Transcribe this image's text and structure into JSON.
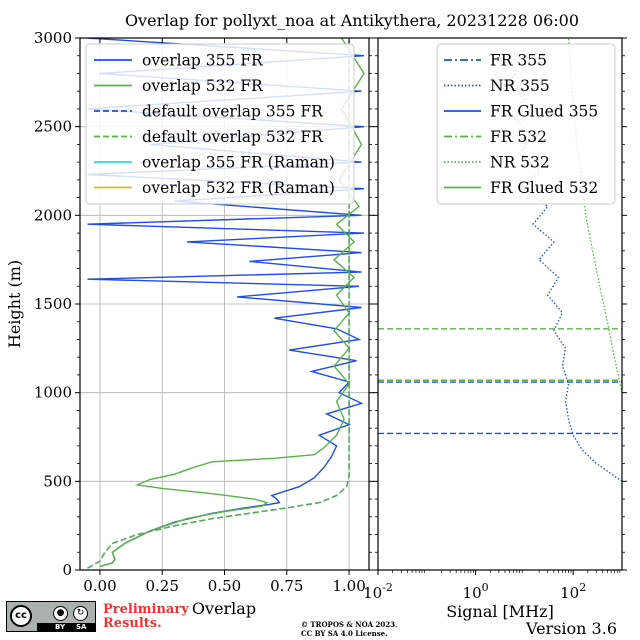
{
  "title": "Overlap for pollyxt_noa at Antikythera, 20231228 06:00",
  "footer": {
    "cc_icon": "creative-commons-by-sa-icon",
    "cc_by": "BY",
    "cc_sa": "SA",
    "preliminary_line1": "Preliminary",
    "preliminary_line2": "Results.",
    "copyright_line1": "© TROPOS & NOA 2023.",
    "copyright_line2": "CC BY SA 4.0 License.",
    "version": "Version 3.6"
  },
  "colors": {
    "blue": "#1f4fdc",
    "green": "#59b347",
    "cyan": "#22dfe6",
    "gold": "#e2b823"
  },
  "chart_data": [
    {
      "type": "line",
      "xlabel": "Overlap",
      "ylabel": "Height (m)",
      "xlim": [
        -0.08,
        1.08
      ],
      "ylim": [
        0,
        3000
      ],
      "xticks": [
        0.0,
        0.25,
        0.5,
        0.75,
        1.0
      ],
      "xtick_labels": [
        "0.00",
        "0.25",
        "0.50",
        "0.75",
        "1.00"
      ],
      "yticks": [
        0,
        500,
        1000,
        1500,
        2000,
        2500,
        3000
      ],
      "ytick_labels": [
        "0",
        "500",
        "1000",
        "1500",
        "2000",
        "2500",
        "3000"
      ],
      "grid": true,
      "legend_position": "top-left",
      "series": [
        {
          "name": "overlap 355 FR",
          "style": "solid",
          "color": "#1f4fdc",
          "points": [
            [
              0.0,
              20
            ],
            [
              0.05,
              40
            ],
            [
              0.06,
              60
            ],
            [
              0.05,
              100
            ],
            [
              0.1,
              150
            ],
            [
              0.2,
              220
            ],
            [
              0.3,
              270
            ],
            [
              0.45,
              320
            ],
            [
              0.58,
              350
            ],
            [
              0.68,
              370
            ],
            [
              0.72,
              380
            ],
            [
              0.71,
              400
            ],
            [
              0.69,
              420
            ],
            [
              0.8,
              470
            ],
            [
              0.86,
              520
            ],
            [
              0.9,
              580
            ],
            [
              0.93,
              640
            ],
            [
              0.95,
              700
            ],
            [
              0.88,
              760
            ],
            [
              1.0,
              820
            ],
            [
              0.91,
              880
            ],
            [
              1.05,
              940
            ],
            [
              0.96,
              1000
            ],
            [
              1.0,
              1060
            ],
            [
              0.85,
              1120
            ],
            [
              1.03,
              1180
            ],
            [
              0.76,
              1240
            ],
            [
              1.04,
              1300
            ],
            [
              0.95,
              1360
            ],
            [
              0.7,
              1420
            ],
            [
              1.05,
              1480
            ],
            [
              0.55,
              1540
            ],
            [
              1.04,
              1600
            ],
            [
              -0.05,
              1640
            ],
            [
              1.05,
              1680
            ],
            [
              0.6,
              1740
            ],
            [
              1.05,
              1790
            ],
            [
              0.35,
              1850
            ],
            [
              1.06,
              1900
            ],
            [
              -0.05,
              1950
            ],
            [
              1.05,
              2000
            ],
            [
              0.3,
              2080
            ],
            [
              1.06,
              2150
            ],
            [
              -0.05,
              2230
            ],
            [
              1.05,
              2300
            ],
            [
              0.2,
              2400
            ],
            [
              1.06,
              2500
            ],
            [
              -0.05,
              2600
            ],
            [
              1.05,
              2700
            ],
            [
              0.0,
              2800
            ],
            [
              1.06,
              2900
            ],
            [
              -0.05,
              3000
            ]
          ]
        },
        {
          "name": "overlap 532 FR",
          "style": "solid",
          "color": "#59b347",
          "points": [
            [
              0.0,
              20
            ],
            [
              0.05,
              40
            ],
            [
              0.06,
              60
            ],
            [
              0.05,
              100
            ],
            [
              0.1,
              150
            ],
            [
              0.2,
              220
            ],
            [
              0.35,
              290
            ],
            [
              0.5,
              330
            ],
            [
              0.65,
              360
            ],
            [
              0.67,
              380
            ],
            [
              0.62,
              400
            ],
            [
              0.45,
              430
            ],
            [
              0.25,
              460
            ],
            [
              0.15,
              480
            ],
            [
              0.2,
              510
            ],
            [
              0.3,
              540
            ],
            [
              0.38,
              580
            ],
            [
              0.45,
              610
            ],
            [
              0.7,
              630
            ],
            [
              0.86,
              650
            ],
            [
              0.9,
              690
            ],
            [
              0.95,
              760
            ],
            [
              0.98,
              850
            ],
            [
              0.95,
              950
            ],
            [
              1.0,
              1050
            ],
            [
              0.94,
              1150
            ],
            [
              1.0,
              1250
            ],
            [
              0.94,
              1350
            ],
            [
              1.0,
              1450
            ],
            [
              0.95,
              1550
            ],
            [
              1.02,
              1650
            ],
            [
              0.94,
              1750
            ],
            [
              1.02,
              1850
            ],
            [
              0.95,
              1950
            ],
            [
              1.04,
              2050
            ],
            [
              0.96,
              2200
            ],
            [
              1.05,
              2400
            ],
            [
              0.97,
              2600
            ],
            [
              1.06,
              2800
            ],
            [
              0.97,
              3000
            ]
          ]
        },
        {
          "name": "default overlap 355 FR",
          "style": "dashed",
          "color": "#1f4fdc",
          "points": [
            [
              -0.05,
              10
            ],
            [
              0.0,
              50
            ],
            [
              0.02,
              100
            ],
            [
              0.05,
              150
            ],
            [
              0.15,
              200
            ],
            [
              0.3,
              250
            ],
            [
              0.45,
              290
            ],
            [
              0.6,
              320
            ],
            [
              0.75,
              350
            ],
            [
              0.88,
              380
            ],
            [
              0.95,
              420
            ],
            [
              0.99,
              470
            ],
            [
              1.0,
              530
            ],
            [
              1.0,
              3000
            ]
          ]
        },
        {
          "name": "default overlap 532 FR",
          "style": "dashed",
          "color": "#59b347",
          "points": [
            [
              -0.05,
              10
            ],
            [
              0.0,
              50
            ],
            [
              0.02,
              100
            ],
            [
              0.05,
              150
            ],
            [
              0.15,
              200
            ],
            [
              0.3,
              250
            ],
            [
              0.45,
              290
            ],
            [
              0.6,
              320
            ],
            [
              0.75,
              350
            ],
            [
              0.88,
              380
            ],
            [
              0.95,
              420
            ],
            [
              0.99,
              470
            ],
            [
              1.0,
              530
            ],
            [
              1.0,
              3000
            ]
          ]
        },
        {
          "name": "overlap 355 FR (Raman)",
          "style": "solid",
          "color": "#22dfe6",
          "points": []
        },
        {
          "name": "overlap 532 FR (Raman)",
          "style": "solid",
          "color": "#e2b823",
          "points": []
        }
      ]
    },
    {
      "type": "line",
      "xlabel": "Signal [MHz]",
      "xscale": "log",
      "xlim": [
        0.01,
        1000
      ],
      "ylim": [
        0,
        3000
      ],
      "xtick_labels": [
        "10^-2",
        "10^0",
        "10^2"
      ],
      "grid": false,
      "legend_position": "top-right",
      "series": [
        {
          "name": "FR 355",
          "style": "dashdot",
          "color": "#1f4fdc",
          "points": []
        },
        {
          "name": "NR 355",
          "style": "dotted",
          "color": "#1f4fdc",
          "points": [
            [
              1000,
              500
            ],
            [
              300,
              600
            ],
            [
              150,
              680
            ],
            [
              100,
              760
            ],
            [
              80,
              850
            ],
            [
              70,
              950
            ],
            [
              80,
              1050
            ],
            [
              60,
              1150
            ],
            [
              70,
              1250
            ],
            [
              40,
              1350
            ],
            [
              60,
              1450
            ],
            [
              30,
              1550
            ],
            [
              50,
              1650
            ],
            [
              20,
              1750
            ],
            [
              40,
              1850
            ],
            [
              15,
              1950
            ],
            [
              30,
              2050
            ],
            [
              10,
              2150
            ],
            [
              20,
              2250
            ],
            [
              8,
              2350
            ],
            [
              15,
              2450
            ],
            [
              6,
              2550
            ],
            [
              10,
              2650
            ],
            [
              5,
              2750
            ],
            [
              8,
              2850
            ],
            [
              4,
              2950
            ]
          ]
        },
        {
          "name": "FR Glued 355",
          "style": "solid",
          "color": "#1f4fdc",
          "points": []
        },
        {
          "name": "FR 532",
          "style": "dashdot",
          "color": "#59b347",
          "points": []
        },
        {
          "name": "NR 532",
          "style": "dotted",
          "color": "#59b347",
          "points": [
            [
              1000,
              1000
            ],
            [
              700,
              1200
            ],
            [
              500,
              1400
            ],
            [
              350,
              1600
            ],
            [
              250,
              1800
            ],
            [
              180,
              2000
            ],
            [
              150,
              2200
            ],
            [
              120,
              2400
            ],
            [
              100,
              2600
            ],
            [
              90,
              2800
            ],
            [
              80,
              3000
            ]
          ]
        },
        {
          "name": "FR Glued 532",
          "style": "solid",
          "color": "#59b347",
          "points": []
        }
      ],
      "reference_lines": [
        {
          "y": 770,
          "color": "#1f4fdc"
        },
        {
          "y": 1060,
          "color": "#1f4fdc"
        },
        {
          "y": 1070,
          "color": "#59b347"
        },
        {
          "y": 1360,
          "color": "#59b347"
        }
      ]
    }
  ]
}
